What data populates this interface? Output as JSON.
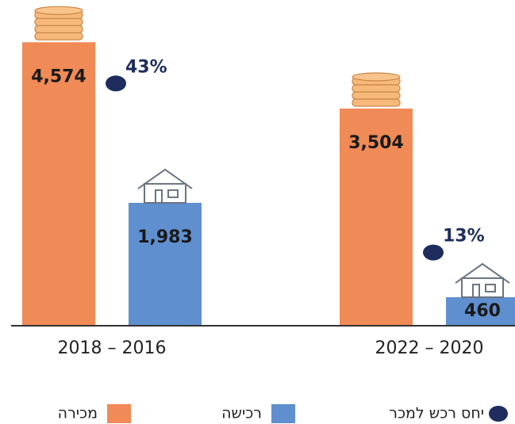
{
  "chart_data": {
    "type": "bar",
    "categories": [
      "2018 – 2016",
      "2022 – 2020"
    ],
    "series": [
      {
        "name": "מכירה",
        "color": "#f08a56",
        "values": [
          4574,
          3504
        ],
        "value_labels": [
          "4,574",
          "3,504"
        ]
      },
      {
        "name": "רכישה",
        "color": "#5f8fcf",
        "values": [
          1983,
          460
        ],
        "value_labels": [
          "1,983",
          "460"
        ]
      },
      {
        "name": "יחס רכש למכר",
        "color": "#1e2d5e",
        "type": "scatter",
        "axis": "y2",
        "values": [
          43,
          13
        ],
        "value_labels": [
          "43%",
          "13%"
        ]
      }
    ],
    "ylim": [
      0,
      5000
    ],
    "y2lim": [
      0,
      55
    ]
  }
}
